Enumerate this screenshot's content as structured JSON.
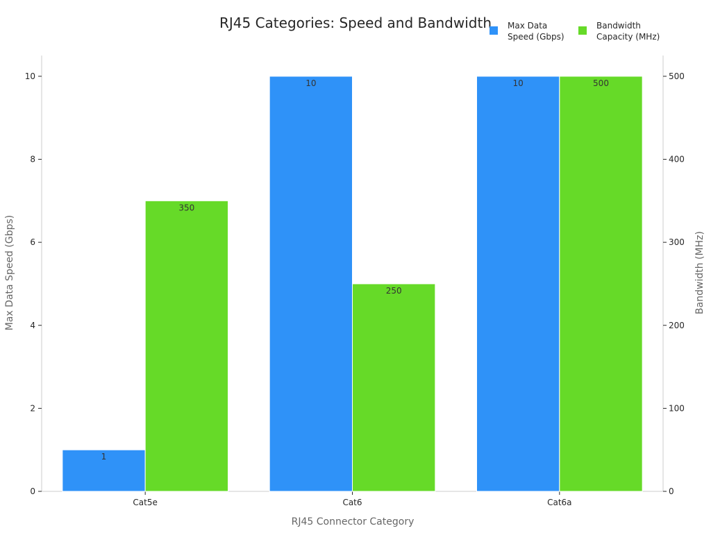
{
  "chart_data": {
    "type": "bar",
    "title": "RJ45 Categories: Speed and Bandwidth",
    "xlabel": "RJ45 Connector Category",
    "ylabel": "Max Data Speed (Gbps)",
    "y2label": "Bandwidth (MHz)",
    "categories": [
      "Cat5e",
      "Cat6",
      "Cat6a"
    ],
    "ylim": [
      0,
      10.5
    ],
    "y2lim": [
      0,
      525
    ],
    "yticks": [
      0,
      2,
      4,
      6,
      8,
      10
    ],
    "y2ticks": [
      0,
      100,
      200,
      300,
      400,
      500
    ],
    "legend_placement": "top-right",
    "series": [
      {
        "name": "Max Data Speed (Gbps)",
        "legend_lines": [
          "Max Data",
          "Speed (Gbps)"
        ],
        "axis": "left",
        "color": "#2f92f8",
        "values": [
          1,
          10,
          10
        ],
        "labels": [
          "1",
          "10",
          "10"
        ]
      },
      {
        "name": "Bandwidth Capacity (MHz)",
        "legend_lines": [
          "Bandwidth",
          "Capacity (MHz)"
        ],
        "axis": "right",
        "color": "#66da28",
        "values": [
          350,
          250,
          500
        ],
        "labels": [
          "350",
          "250",
          "500"
        ]
      }
    ]
  }
}
